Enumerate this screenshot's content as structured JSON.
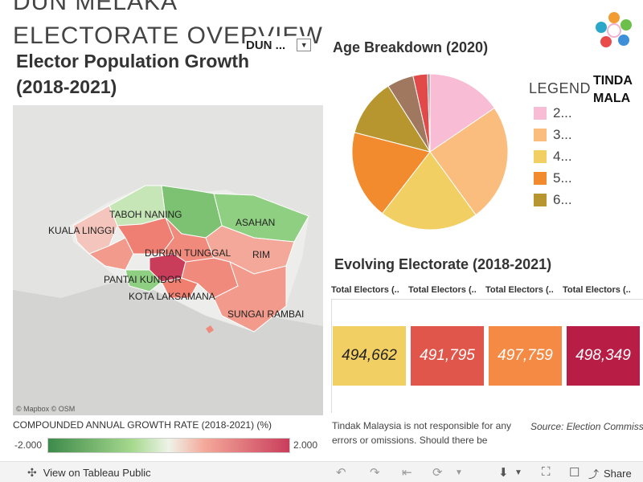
{
  "dashboard": {
    "cut_title_line1": "DUN MELAKA",
    "cut_title_line2": "ELECTORATE OVERVIEW"
  },
  "map_panel": {
    "title": "Elector Population Growth (2018-2021)",
    "filter_label": "DUN ...",
    "attribution": "© Mapbox  © OSM",
    "places": [
      "TABOH NANING",
      "ASAHAN",
      "KUALA LINGGI",
      "DURIAN TUNGGAL",
      "RIM",
      "PANTAI KUNDOR",
      "KOTA LAKSAMANA",
      "SUNGAI RAMBAI"
    ],
    "legend": {
      "title": "COMPOUNDED ANNUAL GROWTH RATE (2018-2021) (%)",
      "min": "-2.000",
      "max": "2.000",
      "colors": [
        "#3d8a4a",
        "#a7d98e",
        "#f4a89a",
        "#c93d5b"
      ]
    }
  },
  "age": {
    "title": "Age Breakdown (2020)",
    "legend_title": "LEGEND",
    "legend_items": [
      "2...",
      "3...",
      "4...",
      "5...",
      "6..."
    ],
    "chart_data": {
      "type": "pie",
      "title": "Age Breakdown (2020)",
      "categories": [
        "2...",
        "3...",
        "4...",
        "5...",
        "6...",
        "",
        "",
        ""
      ],
      "values": [
        15.5,
        24.5,
        20.5,
        18.5,
        12.0,
        5.5,
        3.0,
        0.5
      ],
      "colors": [
        "#f8bcd4",
        "#fbbd7d",
        "#f2cf63",
        "#f28b2e",
        "#b8962f",
        "#a07860",
        "#e24a4a",
        "#8a8a8a"
      ],
      "legend_position": "right"
    }
  },
  "logo": {
    "name": "tindak-malaysia-logo",
    "text_line1": "TINDA",
    "text_line2": "MALA"
  },
  "electorate": {
    "title": "Evolving Electorate (2018-2021)",
    "headers": [
      "Total Electors (..",
      "Total Electors (..",
      "Total Electors (..",
      "Total Electors (.."
    ],
    "chart_data": {
      "type": "table",
      "title": "Evolving Electorate (2018-2021)",
      "categories": [
        "Total Electors (..",
        "Total Electors (..",
        "Total Electors (..",
        "Total Electors (.."
      ],
      "values": [
        494662,
        491795,
        497759,
        498349
      ],
      "labels": [
        "494,662",
        "491,795",
        "497,759",
        "498,349"
      ],
      "colors": [
        "#f2cf63",
        "#e0564a",
        "#f58a45",
        "#b81e45"
      ],
      "text_colors": [
        "#222222",
        "#ffffff",
        "#ffffff",
        "#ffffff"
      ]
    }
  },
  "footer": {
    "disclaimer": "Tindak Malaysia is not responsible for any errors or omissions. Should there be",
    "source": "Source: Election Commission of Malaysia (SPR Malaysia), Tindak"
  },
  "toolbar": {
    "view_label": "View on Tableau Public",
    "share_label": "Share"
  }
}
